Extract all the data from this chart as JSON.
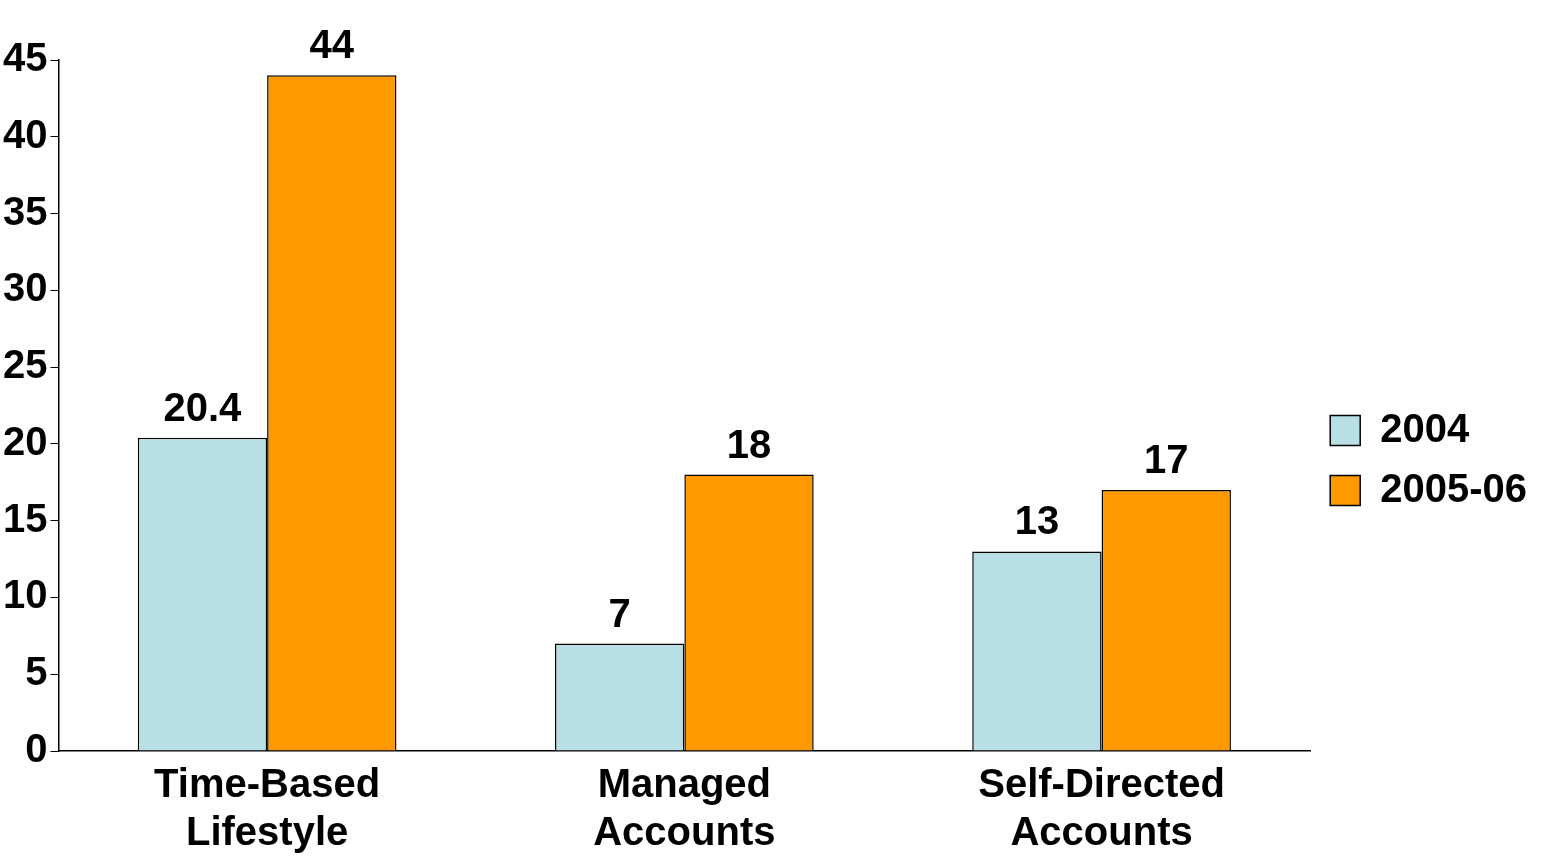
{
  "chart_data": {
    "type": "bar",
    "categories": [
      "Time-Based Lifestyle",
      "Managed Accounts",
      "Self-Directed Accounts"
    ],
    "series": [
      {
        "name": "2004",
        "color": "#b8e0e4",
        "values": [
          20.4,
          7,
          13
        ]
      },
      {
        "name": "2005-06",
        "color": "#ff9900",
        "values": [
          44,
          18,
          17
        ]
      }
    ],
    "ylim": [
      0,
      45
    ],
    "yticks": [
      0,
      5,
      10,
      15,
      20,
      25,
      30,
      35,
      40,
      45
    ],
    "grid": false,
    "legend": "right",
    "data_labels": true
  }
}
